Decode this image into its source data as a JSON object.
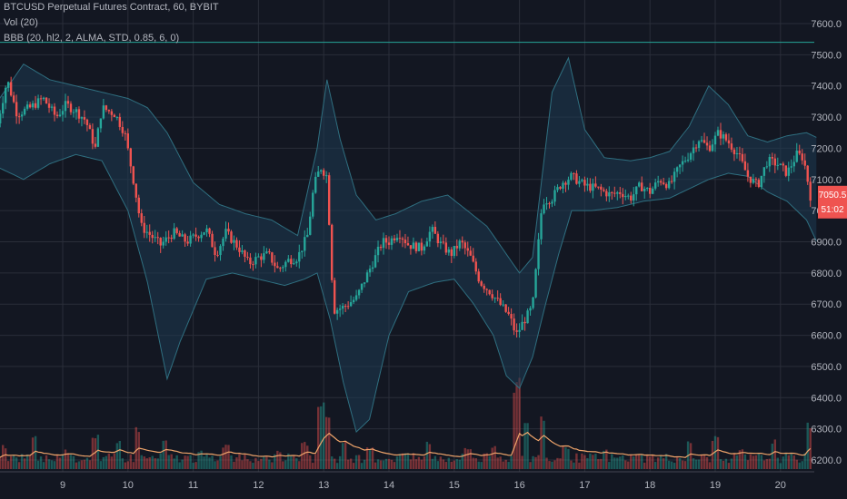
{
  "header": {
    "symbol_line": "BTCUSD Perpetual Futures Contract, 60, BYBIT",
    "vol_line": "Vol (20)",
    "bb_line": "BBB (20, hl2, 2, ALMA, STD, 0.85, 6, 0)"
  },
  "price_badge": {
    "price": "7050.5",
    "countdown": "51:02",
    "color": "#ef5350"
  },
  "colors": {
    "background": "#131722",
    "grid": "#2a2e39",
    "up": "#26a69a",
    "down": "#ef5350",
    "band_fill": "#1e3a52",
    "band_line": "#2f6f80",
    "vol_ma": "#f0a56b",
    "hline": "#26a69a"
  },
  "chart_data": {
    "type": "candlestick",
    "y_ticks": [
      "7600.0",
      "7500.0",
      "7400.0",
      "7300.0",
      "7200.0",
      "7100.0",
      "7000.0",
      "6900.0",
      "6800.0",
      "6700.0",
      "6600.0",
      "6500.0",
      "6400.0",
      "6300.0",
      "6200.0"
    ],
    "x_ticks": [
      "9",
      "10",
      "11",
      "12",
      "13",
      "14",
      "15",
      "16",
      "17",
      "18",
      "19",
      "20"
    ],
    "ylim": [
      6160,
      7660
    ],
    "horizontal_line": 7540,
    "close_path": [
      [
        8.0,
        7280
      ],
      [
        8.15,
        7420
      ],
      [
        8.3,
        7310
      ],
      [
        8.5,
        7330
      ],
      [
        8.7,
        7360
      ],
      [
        8.9,
        7300
      ],
      [
        9.05,
        7340
      ],
      [
        9.2,
        7320
      ],
      [
        9.35,
        7290
      ],
      [
        9.5,
        7200
      ],
      [
        9.6,
        7330
      ],
      [
        9.8,
        7310
      ],
      [
        9.95,
        7250
      ],
      [
        10.1,
        7080
      ],
      [
        10.2,
        6950
      ],
      [
        10.35,
        6920
      ],
      [
        10.5,
        6890
      ],
      [
        10.7,
        6930
      ],
      [
        10.9,
        6900
      ],
      [
        11.05,
        6920
      ],
      [
        11.2,
        6940
      ],
      [
        11.35,
        6860
      ],
      [
        11.5,
        6930
      ],
      [
        11.7,
        6880
      ],
      [
        11.85,
        6830
      ],
      [
        12.0,
        6850
      ],
      [
        12.15,
        6860
      ],
      [
        12.3,
        6810
      ],
      [
        12.45,
        6840
      ],
      [
        12.6,
        6850
      ],
      [
        12.75,
        6920
      ],
      [
        12.85,
        7080
      ],
      [
        12.95,
        7140
      ],
      [
        13.05,
        7110
      ],
      [
        13.15,
        6680
      ],
      [
        13.3,
        6690
      ],
      [
        13.5,
        6720
      ],
      [
        13.7,
        6810
      ],
      [
        13.9,
        6900
      ],
      [
        14.0,
        6900
      ],
      [
        14.15,
        6930
      ],
      [
        14.3,
        6890
      ],
      [
        14.5,
        6880
      ],
      [
        14.65,
        6940
      ],
      [
        14.8,
        6890
      ],
      [
        14.95,
        6860
      ],
      [
        15.1,
        6900
      ],
      [
        15.25,
        6850
      ],
      [
        15.4,
        6770
      ],
      [
        15.55,
        6740
      ],
      [
        15.7,
        6700
      ],
      [
        15.85,
        6660
      ],
      [
        15.95,
        6600
      ],
      [
        16.05,
        6640
      ],
      [
        16.2,
        6690
      ],
      [
        16.35,
        7030
      ],
      [
        16.5,
        7040
      ],
      [
        16.65,
        7090
      ],
      [
        16.8,
        7110
      ],
      [
        17.0,
        7080
      ],
      [
        17.2,
        7070
      ],
      [
        17.4,
        7050
      ],
      [
        17.55,
        7060
      ],
      [
        17.7,
        7040
      ],
      [
        17.85,
        7080
      ],
      [
        18.0,
        7060
      ],
      [
        18.15,
        7100
      ],
      [
        18.3,
        7080
      ],
      [
        18.45,
        7140
      ],
      [
        18.6,
        7180
      ],
      [
        18.75,
        7230
      ],
      [
        18.9,
        7200
      ],
      [
        19.05,
        7250
      ],
      [
        19.2,
        7220
      ],
      [
        19.35,
        7180
      ],
      [
        19.5,
        7110
      ],
      [
        19.65,
        7080
      ],
      [
        19.8,
        7160
      ],
      [
        19.95,
        7150
      ],
      [
        20.1,
        7120
      ],
      [
        20.25,
        7180
      ],
      [
        20.35,
        7170
      ],
      [
        20.45,
        7060
      ],
      [
        20.5,
        6980
      ],
      [
        20.6,
        7050
      ]
    ],
    "upper_band": [
      [
        8.0,
        7350
      ],
      [
        8.4,
        7470
      ],
      [
        8.8,
        7420
      ],
      [
        9.2,
        7400
      ],
      [
        9.6,
        7380
      ],
      [
        10.0,
        7360
      ],
      [
        10.3,
        7330
      ],
      [
        10.6,
        7250
      ],
      [
        11.0,
        7090
      ],
      [
        11.4,
        7020
      ],
      [
        11.8,
        6990
      ],
      [
        12.2,
        6970
      ],
      [
        12.6,
        6920
      ],
      [
        12.9,
        7200
      ],
      [
        13.05,
        7420
      ],
      [
        13.25,
        7230
      ],
      [
        13.5,
        7050
      ],
      [
        13.8,
        6970
      ],
      [
        14.1,
        6990
      ],
      [
        14.5,
        7030
      ],
      [
        14.9,
        7050
      ],
      [
        15.2,
        7000
      ],
      [
        15.5,
        6950
      ],
      [
        15.8,
        6860
      ],
      [
        16.0,
        6800
      ],
      [
        16.2,
        6850
      ],
      [
        16.5,
        7380
      ],
      [
        16.75,
        7490
      ],
      [
        17.0,
        7260
      ],
      [
        17.3,
        7170
      ],
      [
        17.7,
        7160
      ],
      [
        18.0,
        7170
      ],
      [
        18.3,
        7190
      ],
      [
        18.6,
        7270
      ],
      [
        18.9,
        7400
      ],
      [
        19.2,
        7340
      ],
      [
        19.5,
        7240
      ],
      [
        19.8,
        7220
      ],
      [
        20.1,
        7240
      ],
      [
        20.4,
        7250
      ],
      [
        20.6,
        7230
      ]
    ],
    "lower_band": [
      [
        8.0,
        7140
      ],
      [
        8.4,
        7100
      ],
      [
        8.8,
        7150
      ],
      [
        9.2,
        7180
      ],
      [
        9.6,
        7160
      ],
      [
        10.0,
        7000
      ],
      [
        10.3,
        6770
      ],
      [
        10.6,
        6460
      ],
      [
        10.8,
        6580
      ],
      [
        11.2,
        6780
      ],
      [
        11.6,
        6800
      ],
      [
        12.0,
        6780
      ],
      [
        12.4,
        6760
      ],
      [
        12.7,
        6780
      ],
      [
        12.9,
        6800
      ],
      [
        13.1,
        6650
      ],
      [
        13.3,
        6450
      ],
      [
        13.5,
        6290
      ],
      [
        13.7,
        6330
      ],
      [
        14.0,
        6600
      ],
      [
        14.3,
        6740
      ],
      [
        14.7,
        6770
      ],
      [
        15.0,
        6780
      ],
      [
        15.3,
        6700
      ],
      [
        15.6,
        6600
      ],
      [
        15.8,
        6470
      ],
      [
        16.0,
        6430
      ],
      [
        16.2,
        6530
      ],
      [
        16.4,
        6700
      ],
      [
        16.6,
        6860
      ],
      [
        16.8,
        7000
      ],
      [
        17.1,
        7000
      ],
      [
        17.5,
        7010
      ],
      [
        17.9,
        7030
      ],
      [
        18.3,
        7040
      ],
      [
        18.6,
        7070
      ],
      [
        18.9,
        7100
      ],
      [
        19.2,
        7120
      ],
      [
        19.5,
        7110
      ],
      [
        19.8,
        7060
      ],
      [
        20.1,
        7030
      ],
      [
        20.4,
        6970
      ],
      [
        20.6,
        6880
      ]
    ],
    "volume_peaks": [
      [
        8.1,
        0.25
      ],
      [
        8.55,
        0.35
      ],
      [
        9.05,
        0.2
      ],
      [
        9.5,
        0.38
      ],
      [
        9.85,
        0.3
      ],
      [
        10.15,
        0.45
      ],
      [
        10.55,
        0.3
      ],
      [
        11.1,
        0.2
      ],
      [
        11.5,
        0.25
      ],
      [
        12.3,
        0.2
      ],
      [
        12.7,
        0.28
      ],
      [
        12.95,
        0.75
      ],
      [
        13.05,
        0.6
      ],
      [
        13.3,
        0.3
      ],
      [
        13.7,
        0.22
      ],
      [
        14.2,
        0.18
      ],
      [
        14.6,
        0.3
      ],
      [
        15.2,
        0.22
      ],
      [
        15.6,
        0.25
      ],
      [
        15.95,
        0.95
      ],
      [
        16.1,
        0.5
      ],
      [
        16.35,
        0.6
      ],
      [
        16.7,
        0.25
      ],
      [
        17.3,
        0.2
      ],
      [
        17.8,
        0.18
      ],
      [
        18.6,
        0.3
      ],
      [
        19.0,
        0.35
      ],
      [
        19.4,
        0.2
      ],
      [
        19.9,
        0.3
      ],
      [
        20.45,
        0.5
      ],
      [
        20.55,
        0.45
      ]
    ]
  }
}
